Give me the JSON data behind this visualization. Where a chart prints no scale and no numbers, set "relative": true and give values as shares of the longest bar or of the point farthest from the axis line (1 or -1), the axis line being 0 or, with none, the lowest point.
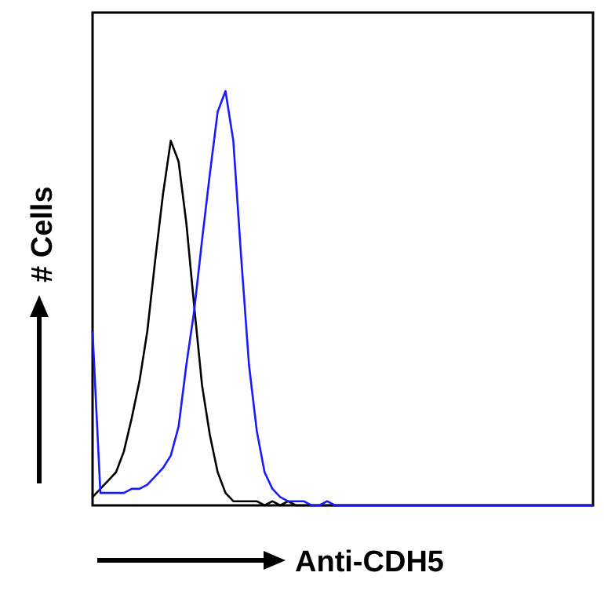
{
  "chart_data": {
    "type": "line",
    "relative": true,
    "xlabel": "Anti-CDH5",
    "ylabel": "# Cells",
    "tick_labels": false,
    "marker": "none",
    "line_style": "solid",
    "categories": [
      null,
      null,
      null,
      null,
      null,
      null,
      null,
      null,
      null,
      null,
      null,
      null,
      null,
      null,
      null,
      null,
      null,
      null,
      null,
      null,
      null,
      null,
      null,
      null,
      null,
      null,
      null,
      null,
      null,
      null,
      null,
      null,
      null,
      null,
      null,
      null,
      null,
      null,
      null,
      null,
      null,
      null,
      null,
      null,
      null,
      null,
      null,
      null,
      null,
      null,
      null,
      null,
      null,
      null,
      null,
      null,
      null,
      null,
      null,
      null,
      null,
      null,
      null,
      null,
      null
    ],
    "series": [
      {
        "color": "#000000",
        "values": [
          0.02,
          0.04,
          0.06,
          0.08,
          0.13,
          0.21,
          0.3,
          0.42,
          0.59,
          0.75,
          0.88,
          0.83,
          0.68,
          0.48,
          0.29,
          0.17,
          0.08,
          0.03,
          0.01,
          0.01,
          0.01,
          0.01,
          0,
          0.01,
          0,
          0.01,
          0,
          0,
          0,
          0,
          0,
          0,
          0,
          0,
          0,
          0,
          0,
          0,
          0,
          0,
          0,
          0,
          0,
          0,
          0,
          0,
          0,
          0,
          0,
          0,
          0,
          0,
          0,
          0,
          0,
          0,
          0,
          0,
          0,
          0,
          0,
          0,
          0,
          0,
          0
        ]
      },
      {
        "color": "#1a1aff",
        "values": [
          0.42,
          0.03,
          0.03,
          0.03,
          0.03,
          0.04,
          0.04,
          0.05,
          0.07,
          0.09,
          0.12,
          0.19,
          0.34,
          0.47,
          0.64,
          0.8,
          0.95,
          1,
          0.88,
          0.6,
          0.34,
          0.18,
          0.08,
          0.04,
          0.02,
          0.01,
          0.01,
          0.01,
          0,
          0,
          0.01,
          0,
          0,
          0,
          0,
          0,
          0,
          0,
          0,
          0,
          0,
          0,
          0,
          0,
          0,
          0,
          0,
          0,
          0,
          0,
          0,
          0,
          0,
          0,
          0,
          0,
          0,
          0,
          0,
          0,
          0,
          0,
          0,
          0,
          0
        ]
      }
    ]
  }
}
